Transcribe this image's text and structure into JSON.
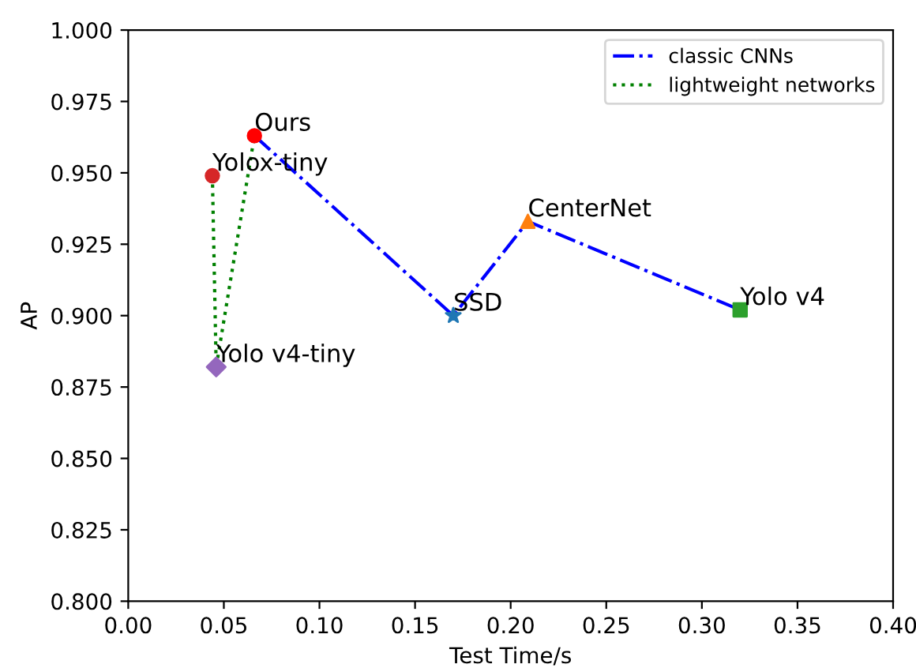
{
  "chart_data": {
    "type": "scatter",
    "xlabel": "Test Time/s",
    "ylabel": "AP",
    "xlim": [
      0.0,
      0.4
    ],
    "xticks": [
      {
        "value": 0,
        "label": "0.00"
      },
      {
        "value": 0.05,
        "label": "0.05"
      },
      {
        "value": 0.1,
        "label": "0.10"
      },
      {
        "value": 0.15,
        "label": "0.15"
      },
      {
        "value": 0.2,
        "label": "0.20"
      },
      {
        "value": 0.25,
        "label": "0.25"
      },
      {
        "value": 0.3,
        "label": "0.30"
      },
      {
        "value": 0.35,
        "label": "0.35"
      },
      {
        "value": 0.4,
        "label": "0.40"
      }
    ],
    "ylim": [
      0.8,
      1.0
    ],
    "yticks": [
      {
        "value": 0.8,
        "label": "0.800"
      },
      {
        "value": 0.825,
        "label": "0.825"
      },
      {
        "value": 0.85,
        "label": "0.850"
      },
      {
        "value": 0.875,
        "label": "0.875"
      },
      {
        "value": 0.9,
        "label": "0.900"
      },
      {
        "value": 0.925,
        "label": "0.925"
      },
      {
        "value": 0.95,
        "label": "0.950"
      },
      {
        "value": 0.975,
        "label": "0.975"
      },
      {
        "value": 1.0,
        "label": "1.000"
      }
    ],
    "legend": "top right",
    "grid": false,
    "series": [
      {
        "type": "line",
        "name": "classic CNNs",
        "color": "#0000ff",
        "line_style": "dashdot",
        "marker": "none",
        "x": [
          0.066,
          0.17,
          0.209,
          0.32
        ],
        "values": [
          0.963,
          0.9,
          0.933,
          0.902
        ]
      },
      {
        "type": "line",
        "name": "lightweight networks",
        "color": "#008000",
        "line_style": "dotted",
        "marker": "none",
        "x": [
          0.044,
          0.046,
          0.066
        ],
        "values": [
          0.949,
          0.882,
          0.963
        ]
      },
      {
        "color": "#ff0000",
        "marker": "circle",
        "x": [
          0.066
        ],
        "values": [
          0.963
        ]
      },
      {
        "color": "#d62728",
        "marker": "circle",
        "x": [
          0.044
        ],
        "values": [
          0.949
        ]
      },
      {
        "color": "#9467bd",
        "marker": "diamond",
        "x": [
          0.046
        ],
        "values": [
          0.882
        ]
      },
      {
        "color": "#1f77b4",
        "marker": "star",
        "x": [
          0.17
        ],
        "values": [
          0.9
        ]
      },
      {
        "color": "#ff7f0e",
        "marker": "triangle",
        "x": [
          0.209
        ],
        "values": [
          0.933
        ]
      },
      {
        "color": "#2ca02c",
        "marker": "square",
        "x": [
          0.32
        ],
        "values": [
          0.902
        ]
      }
    ],
    "annotations": [
      {
        "text": "Ours",
        "x": 0.066,
        "y": 0.963
      },
      {
        "text": "Yolox-tiny",
        "x": 0.044,
        "y": 0.949
      },
      {
        "text": "Yolo v4-tiny",
        "x": 0.046,
        "y": 0.882
      },
      {
        "text": "SSD",
        "x": 0.17,
        "y": 0.9
      },
      {
        "text": "CenterNet",
        "x": 0.209,
        "y": 0.933
      },
      {
        "text": "Yolo v4",
        "x": 0.32,
        "y": 0.902
      }
    ]
  }
}
